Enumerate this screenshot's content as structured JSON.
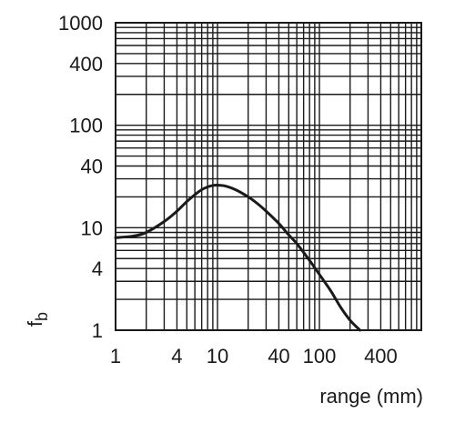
{
  "chart_data": {
    "type": "line",
    "title": "",
    "xlabel": "range (mm)",
    "ylabel": "f",
    "ylabel_subscript": "b",
    "xscale": "log",
    "yscale": "log",
    "xlim": [
      1,
      1000
    ],
    "ylim": [
      1,
      1000
    ],
    "grid": true,
    "x_ticks": [
      1,
      4,
      10,
      40,
      100,
      400
    ],
    "y_ticks": [
      1,
      4,
      10,
      40,
      100,
      400,
      1000
    ],
    "x_grid": [
      1,
      2,
      3,
      4,
      5,
      6,
      7,
      8,
      9,
      10,
      20,
      30,
      40,
      50,
      60,
      70,
      80,
      90,
      100,
      200,
      300,
      400,
      500,
      600,
      700,
      800,
      900,
      1000
    ],
    "y_grid": [
      1,
      2,
      3,
      4,
      5,
      6,
      7,
      8,
      9,
      10,
      20,
      30,
      40,
      50,
      60,
      70,
      80,
      90,
      100,
      200,
      300,
      400,
      500,
      600,
      700,
      800,
      900,
      1000
    ],
    "series": [
      {
        "x": [
          1,
          1.5,
          2,
          3,
          4,
          5,
          6,
          7,
          8,
          9,
          10,
          12,
          15,
          20,
          25,
          30,
          40,
          50,
          60,
          80,
          100,
          130,
          160,
          200,
          250
        ],
        "y": [
          8,
          8.3,
          9,
          11.5,
          14.5,
          18,
          21,
          23.5,
          25,
          25.8,
          26,
          25.5,
          23.5,
          20,
          17,
          14.5,
          11,
          8.5,
          7,
          4.8,
          3.5,
          2.4,
          1.7,
          1.25,
          1
        ]
      }
    ]
  }
}
